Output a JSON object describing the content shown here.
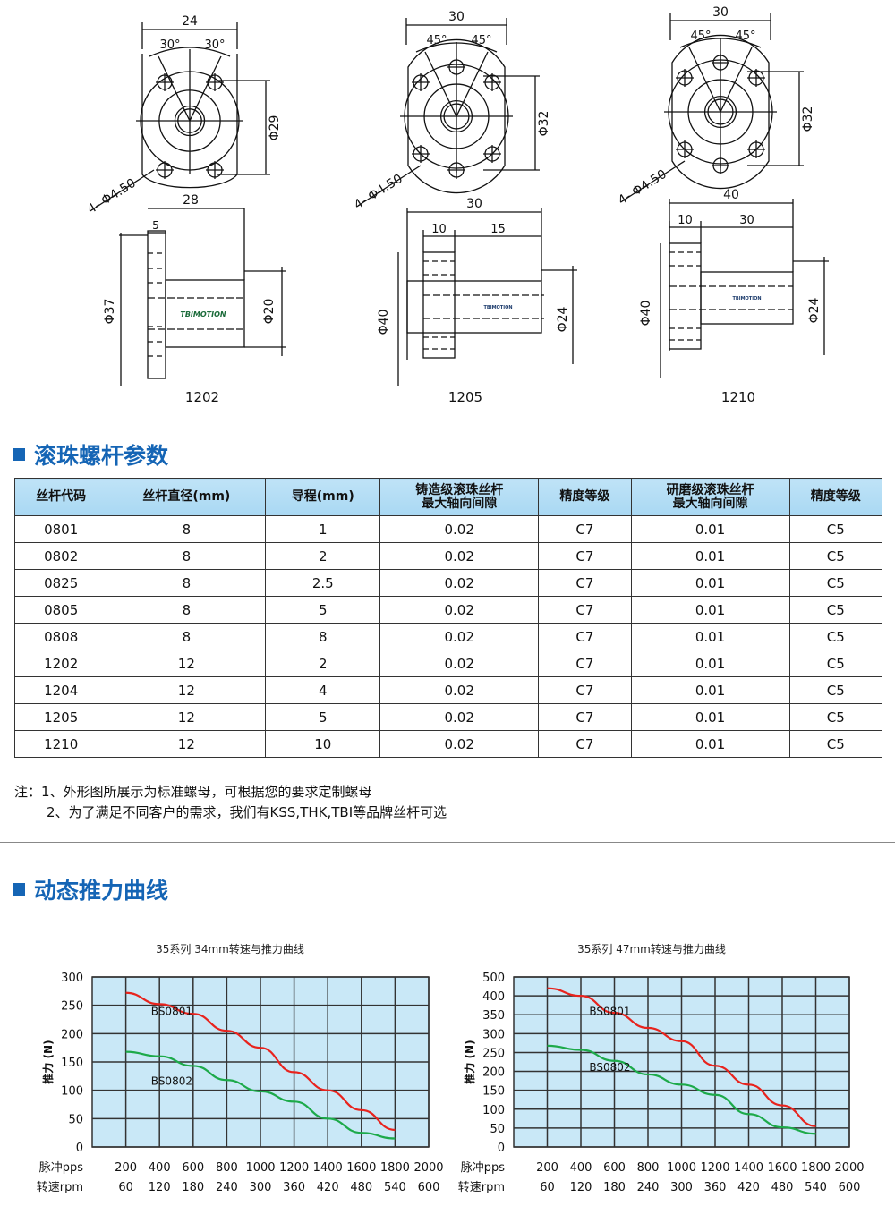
{
  "drawings": [
    {
      "model": "1202",
      "front": {
        "width": "24",
        "angle_left": "30°",
        "angle_right": "30°",
        "pcd": "Φ29",
        "holes": "4- Φ4.50"
      },
      "side": {
        "length": "28",
        "flange": "5",
        "outer": "Φ37",
        "body": "Φ20"
      },
      "logo": "TBIMOTION"
    },
    {
      "model": "1205",
      "front": {
        "width": "30",
        "angle_left": "45°",
        "angle_right": "45°",
        "pcd": "Φ32",
        "holes": "4- Φ4.50"
      },
      "side": {
        "length": "30",
        "flange": "10",
        "body_len": "15",
        "outer": "Φ40",
        "body": "Φ24"
      },
      "logo": "TBIMOTION"
    },
    {
      "model": "1210",
      "front": {
        "width": "30",
        "angle_left": "45°",
        "angle_right": "45°",
        "pcd": "Φ32",
        "holes": "4- Φ4.50"
      },
      "side": {
        "length": "40",
        "flange": "10",
        "body_len": "30",
        "outer": "Φ40",
        "body": "Φ24"
      },
      "logo": "TBIMOTION"
    }
  ],
  "section1": {
    "title": "滚珠螺杆参数"
  },
  "table": {
    "headers": [
      "丝杆代码",
      "丝杆直径(mm)",
      "导程(mm)",
      "铸造级滚珠丝杆\n最大轴向间隙",
      "精度等级",
      "研磨级滚珠丝杆\n最大轴向间隙",
      "精度等级"
    ],
    "rows": [
      [
        "0801",
        "8",
        "1",
        "0.02",
        "C7",
        "0.01",
        "C5"
      ],
      [
        "0802",
        "8",
        "2",
        "0.02",
        "C7",
        "0.01",
        "C5"
      ],
      [
        "0825",
        "8",
        "2.5",
        "0.02",
        "C7",
        "0.01",
        "C5"
      ],
      [
        "0805",
        "8",
        "5",
        "0.02",
        "C7",
        "0.01",
        "C5"
      ],
      [
        "0808",
        "8",
        "8",
        "0.02",
        "C7",
        "0.01",
        "C5"
      ],
      [
        "1202",
        "12",
        "2",
        "0.02",
        "C7",
        "0.01",
        "C5"
      ],
      [
        "1204",
        "12",
        "4",
        "0.02",
        "C7",
        "0.01",
        "C5"
      ],
      [
        "1205",
        "12",
        "5",
        "0.02",
        "C7",
        "0.01",
        "C5"
      ],
      [
        "1210",
        "12",
        "10",
        "0.02",
        "C7",
        "0.01",
        "C5"
      ]
    ]
  },
  "notes": [
    "注：1、外形图所展示为标准螺母，可根据您的要求定制螺母",
    "2、为了满足不同客户的需求，我们有KSS,THK,TBI等品牌丝杆可选"
  ],
  "section2": {
    "title": "动态推力曲线"
  },
  "chart_data": [
    {
      "type": "line",
      "title": "35系列 34mm转速与推力曲线",
      "ylabel": "推力 (N)",
      "x_row1_label": "脉冲pps",
      "x_row2_label": "转速rpm",
      "x_ticks": [
        200,
        400,
        600,
        800,
        1000,
        1200,
        1400,
        1600,
        1800,
        2000
      ],
      "x_ticks_rpm": [
        60,
        120,
        180,
        240,
        300,
        360,
        420,
        480,
        540,
        600
      ],
      "xlim": [
        0,
        2000
      ],
      "y_ticks": [
        0,
        50,
        100,
        150,
        200,
        250,
        300
      ],
      "grid": true,
      "background": "#c9e8f7",
      "x": [
        200,
        400,
        600,
        800,
        1000,
        1200,
        1400,
        1600,
        1800
      ],
      "series": [
        {
          "name": "BS0801",
          "color": "#e8231d",
          "values": [
            272,
            252,
            235,
            205,
            175,
            132,
            100,
            65,
            30
          ]
        },
        {
          "name": "BS0802",
          "color": "#1daa4a",
          "values": [
            168,
            160,
            143,
            118,
            98,
            80,
            50,
            25,
            15
          ]
        }
      ]
    },
    {
      "type": "line",
      "title": "35系列 47mm转速与推力曲线",
      "ylabel": "推力 (N)",
      "x_row1_label": "脉冲pps",
      "x_row2_label": "转速rpm",
      "x_ticks": [
        200,
        400,
        600,
        800,
        1000,
        1200,
        1400,
        1600,
        1800,
        2000
      ],
      "x_ticks_rpm": [
        60,
        120,
        180,
        240,
        300,
        360,
        420,
        480,
        540,
        600
      ],
      "xlim": [
        0,
        2000
      ],
      "y_ticks": [
        0,
        50,
        100,
        150,
        200,
        250,
        300,
        350,
        400,
        500
      ],
      "grid": true,
      "background": "#c9e8f7",
      "x": [
        200,
        400,
        600,
        800,
        1000,
        1200,
        1400,
        1600,
        1800
      ],
      "series": [
        {
          "name": "BS0801",
          "color": "#e8231d",
          "values": [
            440,
            400,
            355,
            315,
            280,
            215,
            165,
            110,
            55
          ]
        },
        {
          "name": "BS0802",
          "color": "#1daa4a",
          "values": [
            268,
            257,
            228,
            192,
            165,
            138,
            87,
            52,
            35
          ]
        }
      ]
    }
  ]
}
